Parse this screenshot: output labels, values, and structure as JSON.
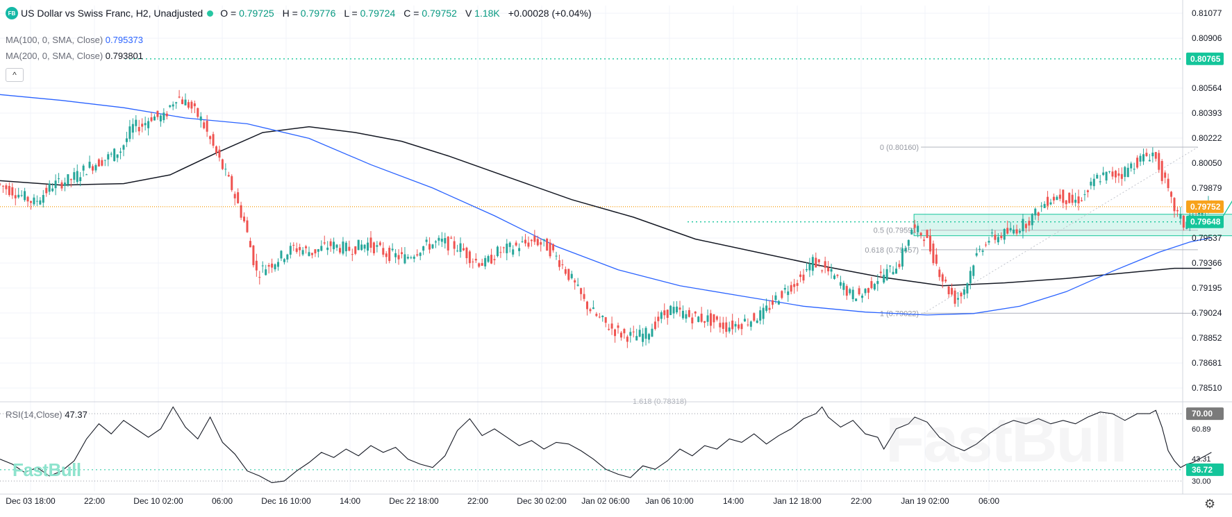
{
  "header": {
    "logo_text": "FB",
    "title": "US Dollar vs Swiss Franc, H2, Unadjusted",
    "open_label": "O",
    "open": "0.79725",
    "high_label": "H",
    "high": "0.79776",
    "low_label": "L",
    "low": "0.79724",
    "close_label": "C",
    "close": "0.79752",
    "volume_label": "V",
    "volume": "1.18K",
    "change": "+0.00028 (+0.04%)"
  },
  "indicators": {
    "ma100_label": "MA(100, 0, SMA, Close)",
    "ma100_value": "0.795373",
    "ma200_label": "MA(200, 0, SMA, Close)",
    "ma200_value": "0.793801",
    "rsi_label": "RSI(14,Close)",
    "rsi_value": "47.37",
    "collapse_symbol": "^"
  },
  "watermark": {
    "small": "FastBull",
    "big": "FastBull"
  },
  "settings_icon": "⚙",
  "colors": {
    "up": "#26a69a",
    "down": "#ef5350",
    "ma100": "#2962ff",
    "ma200": "#131722",
    "teal": "#14c59a",
    "orange": "#f7a21b",
    "rsi": "#131722"
  },
  "chart_data": {
    "type": "candlestick",
    "title": "US Dollar vs Swiss Franc, H2, Unadjusted",
    "price_axis": {
      "ticks": [
        "0.81077",
        "0.80906",
        "0.80564",
        "0.80393",
        "0.80222",
        "0.80050",
        "0.79879",
        "0.79537",
        "0.79366",
        "0.79195",
        "0.79024",
        "0.78852",
        "0.78681",
        "0.78510"
      ],
      "ylim": [
        0.7842,
        0.8113
      ]
    },
    "price_markers": [
      {
        "label": "0.80765",
        "value": 0.80765,
        "color": "#14c59a"
      },
      {
        "label": "0.79752",
        "value": 0.79752,
        "color": "#f7a21b"
      },
      {
        "label": "0.79648",
        "value": 0.79648,
        "color": "#14c59a"
      }
    ],
    "time_axis": {
      "labels": [
        "Dec 03 18:00",
        "22:00",
        "Dec 10 02:00",
        "06:00",
        "Dec 16 10:00",
        "14:00",
        "Dec 22 18:00",
        "22:00",
        "Dec 30 02:00",
        "Jan 02 06:00",
        "Jan 06 10:00",
        "14:00",
        "Jan 12 18:00",
        "22:00",
        "Jan 19 02:00",
        "06:00"
      ],
      "bars_total": 250
    },
    "candles_path": [
      [
        0,
        0.7991
      ],
      [
        6,
        0.7985
      ],
      [
        12,
        0.7978
      ],
      [
        18,
        0.799
      ],
      [
        24,
        0.7994
      ],
      [
        30,
        0.8003
      ],
      [
        36,
        0.8009
      ],
      [
        40,
        0.8014
      ],
      [
        44,
        0.803
      ],
      [
        47,
        0.8031
      ],
      [
        50,
        0.8037
      ],
      [
        54,
        0.8036
      ],
      [
        56,
        0.8044
      ],
      [
        58,
        0.8051
      ],
      [
        62,
        0.8045
      ],
      [
        66,
        0.8035
      ],
      [
        70,
        0.8016
      ],
      [
        76,
        0.7988
      ],
      [
        80,
        0.7965
      ],
      [
        84,
        0.793
      ],
      [
        90,
        0.7938
      ],
      [
        96,
        0.7947
      ],
      [
        102,
        0.7944
      ],
      [
        108,
        0.7949
      ],
      [
        114,
        0.7946
      ],
      [
        120,
        0.795
      ],
      [
        126,
        0.7943
      ],
      [
        132,
        0.794
      ],
      [
        138,
        0.7948
      ],
      [
        144,
        0.7951
      ],
      [
        150,
        0.7947
      ],
      [
        154,
        0.7939
      ],
      [
        158,
        0.7936
      ],
      [
        162,
        0.7944
      ],
      [
        168,
        0.7948
      ],
      [
        174,
        0.7952
      ],
      [
        178,
        0.7948
      ],
      [
        182,
        0.7938
      ],
      [
        186,
        0.7925
      ],
      [
        190,
        0.791
      ],
      [
        194,
        0.79
      ],
      [
        198,
        0.7893
      ],
      [
        202,
        0.7888
      ],
      [
        206,
        0.7886
      ],
      [
        210,
        0.7888
      ],
      [
        214,
        0.7898
      ],
      [
        218,
        0.7905
      ],
      [
        224,
        0.79
      ],
      [
        230,
        0.7898
      ],
      [
        236,
        0.7893
      ],
      [
        240,
        0.7895
      ],
      [
        244,
        0.7898
      ],
      [
        248,
        0.7902
      ],
      [
        252,
        0.7912
      ],
      [
        256,
        0.792
      ],
      [
        260,
        0.7926
      ],
      [
        264,
        0.7938
      ],
      [
        268,
        0.7932
      ],
      [
        272,
        0.7925
      ],
      [
        276,
        0.7915
      ],
      [
        280,
        0.7915
      ],
      [
        284,
        0.7925
      ],
      [
        288,
        0.793
      ],
      [
        292,
        0.7937
      ],
      [
        296,
        0.796
      ],
      [
        300,
        0.7956
      ],
      [
        304,
        0.7936
      ],
      [
        306,
        0.7926
      ],
      [
        308,
        0.7918
      ],
      [
        310,
        0.7912
      ],
      [
        312,
        0.7915
      ],
      [
        314,
        0.7924
      ],
      [
        316,
        0.7938
      ],
      [
        320,
        0.7952
      ],
      [
        324,
        0.7955
      ],
      [
        328,
        0.7958
      ],
      [
        332,
        0.7963
      ],
      [
        336,
        0.797
      ],
      [
        340,
        0.798
      ],
      [
        344,
        0.7983
      ],
      [
        348,
        0.7978
      ],
      [
        352,
        0.7983
      ],
      [
        356,
        0.7995
      ],
      [
        360,
        0.7997
      ],
      [
        364,
        0.7998
      ],
      [
        368,
        0.8005
      ],
      [
        372,
        0.801
      ],
      [
        374,
        0.8012
      ],
      [
        376,
        0.8003
      ],
      [
        378,
        0.7991
      ],
      [
        380,
        0.7978
      ],
      [
        382,
        0.797
      ],
      [
        384,
        0.7963
      ],
      [
        386,
        0.7968
      ],
      [
        388,
        0.797
      ],
      [
        390,
        0.7969
      ],
      [
        392,
        0.7974
      ]
    ],
    "ma100_path": [
      [
        0,
        0.8052
      ],
      [
        20,
        0.8048
      ],
      [
        40,
        0.8043
      ],
      [
        60,
        0.8036
      ],
      [
        80,
        0.8032
      ],
      [
        100,
        0.8022
      ],
      [
        120,
        0.8004
      ],
      [
        140,
        0.7988
      ],
      [
        160,
        0.7969
      ],
      [
        180,
        0.7948
      ],
      [
        200,
        0.7932
      ],
      [
        220,
        0.7921
      ],
      [
        240,
        0.7914
      ],
      [
        260,
        0.7907
      ],
      [
        280,
        0.7903
      ],
      [
        300,
        0.7901
      ],
      [
        315,
        0.7902
      ],
      [
        330,
        0.7907
      ],
      [
        345,
        0.7917
      ],
      [
        360,
        0.7931
      ],
      [
        375,
        0.7944
      ],
      [
        385,
        0.7951
      ],
      [
        392,
        0.7954
      ]
    ],
    "ma200_path": [
      [
        0,
        0.7993
      ],
      [
        20,
        0.799
      ],
      [
        40,
        0.7991
      ],
      [
        55,
        0.7997
      ],
      [
        70,
        0.8012
      ],
      [
        85,
        0.8026
      ],
      [
        100,
        0.803
      ],
      [
        115,
        0.8026
      ],
      [
        130,
        0.802
      ],
      [
        145,
        0.801
      ],
      [
        165,
        0.7995
      ],
      [
        185,
        0.798
      ],
      [
        205,
        0.7968
      ],
      [
        225,
        0.7953
      ],
      [
        245,
        0.7944
      ],
      [
        265,
        0.7935
      ],
      [
        285,
        0.7927
      ],
      [
        305,
        0.7921
      ],
      [
        325,
        0.7923
      ],
      [
        345,
        0.7926
      ],
      [
        365,
        0.793
      ],
      [
        380,
        0.7933
      ],
      [
        392,
        0.7933
      ]
    ],
    "fibonacci": {
      "levels": [
        {
          "label": "0 (0.80160)",
          "value": 0.8016
        },
        {
          "label": "0.5 (0.79591)",
          "value": 0.79591
        },
        {
          "label": "0.618 (0.79457)",
          "value": 0.79457
        },
        {
          "label": "1 (0.79022)",
          "value": 0.79022
        },
        {
          "label": "1.618 (0.78318)",
          "value": 0.78318
        }
      ],
      "start_bar": 298,
      "end_bar": 382
    },
    "support_zone": {
      "from_bar": 298,
      "to_bar": 438,
      "low": 0.79553,
      "high": 0.797
    },
    "projection_arrow": {
      "from_bar": 395,
      "from_price": 0.7966,
      "to_bar": 423,
      "to_price": 0.8076
    },
    "horizontal_lines": [
      {
        "value": 0.80765,
        "style": "dotted",
        "color": "#14c59a"
      },
      {
        "value": 0.79752,
        "style": "dotted",
        "color": "#f7a21b"
      },
      {
        "value": 0.79648,
        "style": "dotted",
        "color": "#14c59a"
      }
    ],
    "rsi": {
      "label": "RSI(14,Close)",
      "value": 47.37,
      "ylim": [
        28,
        75
      ],
      "ticks": [
        "70.00",
        "60.89",
        "43.31",
        "36.72",
        "30.00"
      ],
      "levels": [
        70.0,
        36.72,
        30.0
      ],
      "marker_labels": [
        {
          "label": "70.00",
          "value": 70.0,
          "color": "#7a7a7a"
        },
        {
          "label": "36.72",
          "value": 36.72,
          "color": "#14c59a"
        }
      ],
      "path": [
        [
          0,
          43
        ],
        [
          4,
          40
        ],
        [
          8,
          35
        ],
        [
          12,
          38
        ],
        [
          16,
          33
        ],
        [
          20,
          36
        ],
        [
          24,
          42
        ],
        [
          28,
          55
        ],
        [
          32,
          64
        ],
        [
          36,
          58
        ],
        [
          40,
          66
        ],
        [
          44,
          61
        ],
        [
          48,
          56
        ],
        [
          52,
          61
        ],
        [
          56,
          74
        ],
        [
          60,
          62
        ],
        [
          64,
          55
        ],
        [
          68,
          68
        ],
        [
          72,
          53
        ],
        [
          76,
          46
        ],
        [
          80,
          36
        ],
        [
          84,
          33
        ],
        [
          88,
          29
        ],
        [
          92,
          30
        ],
        [
          96,
          36
        ],
        [
          100,
          41
        ],
        [
          104,
          47
        ],
        [
          108,
          44
        ],
        [
          112,
          49
        ],
        [
          116,
          45
        ],
        [
          120,
          51
        ],
        [
          124,
          47
        ],
        [
          128,
          50
        ],
        [
          132,
          43
        ],
        [
          136,
          40
        ],
        [
          140,
          38
        ],
        [
          144,
          45
        ],
        [
          148,
          60
        ],
        [
          152,
          67
        ],
        [
          156,
          57
        ],
        [
          160,
          61
        ],
        [
          164,
          56
        ],
        [
          168,
          51
        ],
        [
          172,
          54
        ],
        [
          176,
          49
        ],
        [
          180,
          53
        ],
        [
          184,
          52
        ],
        [
          188,
          48
        ],
        [
          192,
          43
        ],
        [
          196,
          37
        ],
        [
          200,
          34
        ],
        [
          204,
          32
        ],
        [
          208,
          39
        ],
        [
          212,
          37
        ],
        [
          216,
          42
        ],
        [
          220,
          49
        ],
        [
          224,
          45
        ],
        [
          228,
          51
        ],
        [
          232,
          49
        ],
        [
          236,
          55
        ],
        [
          240,
          53
        ],
        [
          244,
          58
        ],
        [
          248,
          52
        ],
        [
          252,
          57
        ],
        [
          256,
          61
        ],
        [
          260,
          67
        ],
        [
          264,
          70
        ],
        [
          266,
          74
        ],
        [
          268,
          68
        ],
        [
          272,
          62
        ],
        [
          276,
          66
        ],
        [
          280,
          58
        ],
        [
          284,
          56
        ],
        [
          286,
          49
        ],
        [
          290,
          61
        ],
        [
          294,
          64
        ],
        [
          296,
          68
        ],
        [
          300,
          65
        ],
        [
          304,
          56
        ],
        [
          308,
          51
        ],
        [
          312,
          48
        ],
        [
          316,
          52
        ],
        [
          320,
          58
        ],
        [
          324,
          63
        ],
        [
          328,
          66
        ],
        [
          332,
          64
        ],
        [
          336,
          67
        ],
        [
          340,
          64
        ],
        [
          344,
          66
        ],
        [
          348,
          64
        ],
        [
          352,
          68
        ],
        [
          356,
          71
        ],
        [
          360,
          70
        ],
        [
          364,
          66
        ],
        [
          368,
          70
        ],
        [
          372,
          70
        ],
        [
          374,
          72
        ],
        [
          376,
          62
        ],
        [
          378,
          48
        ],
        [
          380,
          42
        ],
        [
          382,
          38
        ],
        [
          384,
          40
        ],
        [
          386,
          41
        ],
        [
          388,
          43
        ],
        [
          390,
          45
        ],
        [
          392,
          47
        ]
      ]
    }
  }
}
